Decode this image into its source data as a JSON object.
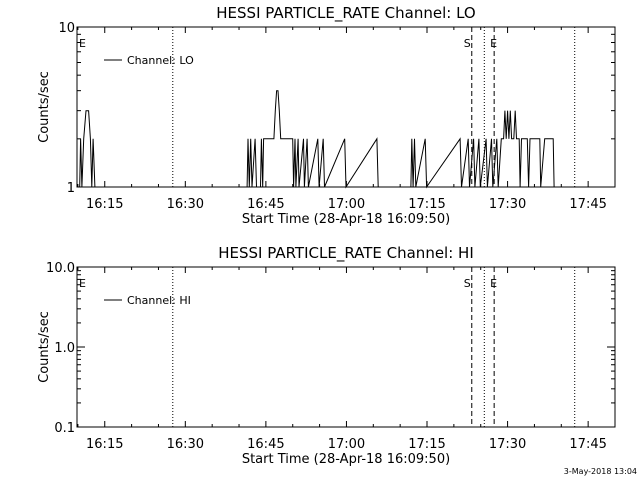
{
  "footer": {
    "timestamp": "3-May-2018 13:04"
  },
  "chart_data": [
    {
      "type": "line",
      "title": "HESSI PARTICLE_RATE Channel: LO",
      "xlabel": "Start Time (28-Apr-18 16:09:50)",
      "ylabel": "Counts/sec",
      "xlim": [
        "16:09:50",
        "17:50:00"
      ],
      "ylim": [
        1,
        10
      ],
      "yscale": "log",
      "xticks": [
        "16:15",
        "16:30",
        "16:45",
        "17:00",
        "17:15",
        "17:30",
        "17:45"
      ],
      "yticks": [
        "1",
        "10"
      ],
      "legend": {
        "label": "Channel: LO",
        "position": "top-left"
      },
      "markers": [
        {
          "label": "E",
          "time": "16:09:50",
          "style": "none"
        },
        {
          "label": "",
          "time": "16:27:40",
          "style": "dotted"
        },
        {
          "label": "S",
          "time": "17:23:20",
          "style": "dashed"
        },
        {
          "label": "",
          "time": "17:25:40",
          "style": "dotted"
        },
        {
          "label": "E",
          "time": "17:27:30",
          "style": "dashed"
        },
        {
          "label": "",
          "time": "17:42:30",
          "style": "dotted"
        }
      ],
      "series": [
        {
          "name": "Channel: LO",
          "points": [
            [
              "16:09:50",
              1
            ],
            [
              "16:10:20",
              1
            ],
            [
              "16:10:30",
              2
            ],
            [
              "16:10:45",
              1
            ],
            [
              "16:11:05",
              2
            ],
            [
              "16:11:30",
              3
            ],
            [
              "16:12:00",
              3
            ],
            [
              "16:12:20",
              2
            ],
            [
              "16:12:35",
              1
            ],
            [
              "16:12:50",
              2
            ],
            [
              "16:13:10",
              1
            ],
            [
              "16:41:30",
              1
            ],
            [
              "16:41:40",
              2
            ],
            [
              "16:41:55",
              1
            ],
            [
              "16:42:10",
              2
            ],
            [
              "16:42:25",
              1
            ],
            [
              "16:43:00",
              2
            ],
            [
              "16:43:15",
              1
            ],
            [
              "16:44:00",
              1
            ],
            [
              "16:44:10",
              2
            ],
            [
              "16:44:25",
              1
            ],
            [
              "16:44:35",
              2
            ],
            [
              "16:46:30",
              2
            ],
            [
              "16:46:45",
              3
            ],
            [
              "16:47:00",
              4
            ],
            [
              "16:47:15",
              4
            ],
            [
              "16:47:30",
              3
            ],
            [
              "16:47:45",
              2
            ],
            [
              "16:50:00",
              2
            ],
            [
              "16:50:10",
              1
            ],
            [
              "16:50:25",
              2
            ],
            [
              "16:50:35",
              1
            ],
            [
              "16:51:00",
              2
            ],
            [
              "16:51:10",
              1
            ],
            [
              "16:52:00",
              2
            ],
            [
              "16:52:10",
              1
            ],
            [
              "16:52:40",
              2
            ],
            [
              "16:52:55",
              1
            ],
            [
              "16:54:40",
              2
            ],
            [
              "16:54:55",
              1
            ],
            [
              "16:55:40",
              2
            ],
            [
              "16:55:55",
              1
            ],
            [
              "16:59:40",
              2
            ],
            [
              "16:59:55",
              1
            ],
            [
              "17:05:40",
              2
            ],
            [
              "17:05:55",
              1
            ],
            [
              "17:12:00",
              1
            ],
            [
              "17:12:10",
              2
            ],
            [
              "17:12:25",
              1
            ],
            [
              "17:12:40",
              2
            ],
            [
              "17:12:55",
              1
            ],
            [
              "17:14:40",
              2
            ],
            [
              "17:14:55",
              1
            ],
            [
              "17:21:10",
              2
            ],
            [
              "17:21:25",
              1
            ],
            [
              "17:22:40",
              2
            ],
            [
              "17:22:55",
              1
            ],
            [
              "17:23:40",
              2
            ],
            [
              "17:23:55",
              1
            ],
            [
              "17:24:40",
              2
            ],
            [
              "17:24:55",
              1
            ],
            [
              "17:26:00",
              2
            ],
            [
              "17:26:15",
              1
            ],
            [
              "17:27:00",
              2
            ],
            [
              "17:27:15",
              1
            ],
            [
              "17:28:00",
              2
            ],
            [
              "17:28:15",
              1
            ],
            [
              "17:28:50",
              2
            ],
            [
              "17:29:15",
              2
            ],
            [
              "17:29:30",
              3
            ],
            [
              "17:29:45",
              2
            ],
            [
              "17:30:00",
              3
            ],
            [
              "17:30:15",
              2
            ],
            [
              "17:30:30",
              3
            ],
            [
              "17:30:45",
              2
            ],
            [
              "17:31:10",
              2
            ],
            [
              "17:31:25",
              3
            ],
            [
              "17:31:40",
              2
            ],
            [
              "17:32:10",
              2
            ],
            [
              "17:32:20",
              1
            ],
            [
              "17:32:35",
              2
            ],
            [
              "17:33:40",
              2
            ],
            [
              "17:33:55",
              1
            ],
            [
              "17:34:10",
              2
            ],
            [
              "17:36:00",
              2
            ],
            [
              "17:36:10",
              1
            ],
            [
              "17:36:55",
              2
            ],
            [
              "17:38:30",
              2
            ],
            [
              "17:38:40",
              1
            ],
            [
              "17:40:10",
              1
            ]
          ]
        }
      ]
    },
    {
      "type": "line",
      "title": "HESSI PARTICLE_RATE Channel: HI",
      "xlabel": "Start Time (28-Apr-18 16:09:50)",
      "ylabel": "Counts/sec",
      "xlim": [
        "16:09:50",
        "17:50:00"
      ],
      "ylim": [
        0.1,
        10
      ],
      "yscale": "log",
      "xticks": [
        "16:15",
        "16:30",
        "16:45",
        "17:00",
        "17:15",
        "17:30",
        "17:45"
      ],
      "yticks": [
        "0.1",
        "1.0",
        "10.0"
      ],
      "legend": {
        "label": "Channel: HI",
        "position": "top-left"
      },
      "markers": [
        {
          "label": "E",
          "time": "16:09:50",
          "style": "none"
        },
        {
          "label": "",
          "time": "16:27:40",
          "style": "dotted"
        },
        {
          "label": "S",
          "time": "17:23:20",
          "style": "dashed"
        },
        {
          "label": "",
          "time": "17:25:40",
          "style": "dotted"
        },
        {
          "label": "E",
          "time": "17:27:30",
          "style": "dashed"
        },
        {
          "label": "",
          "time": "17:42:30",
          "style": "dotted"
        }
      ],
      "series": [
        {
          "name": "Channel: HI",
          "points": []
        }
      ]
    }
  ]
}
